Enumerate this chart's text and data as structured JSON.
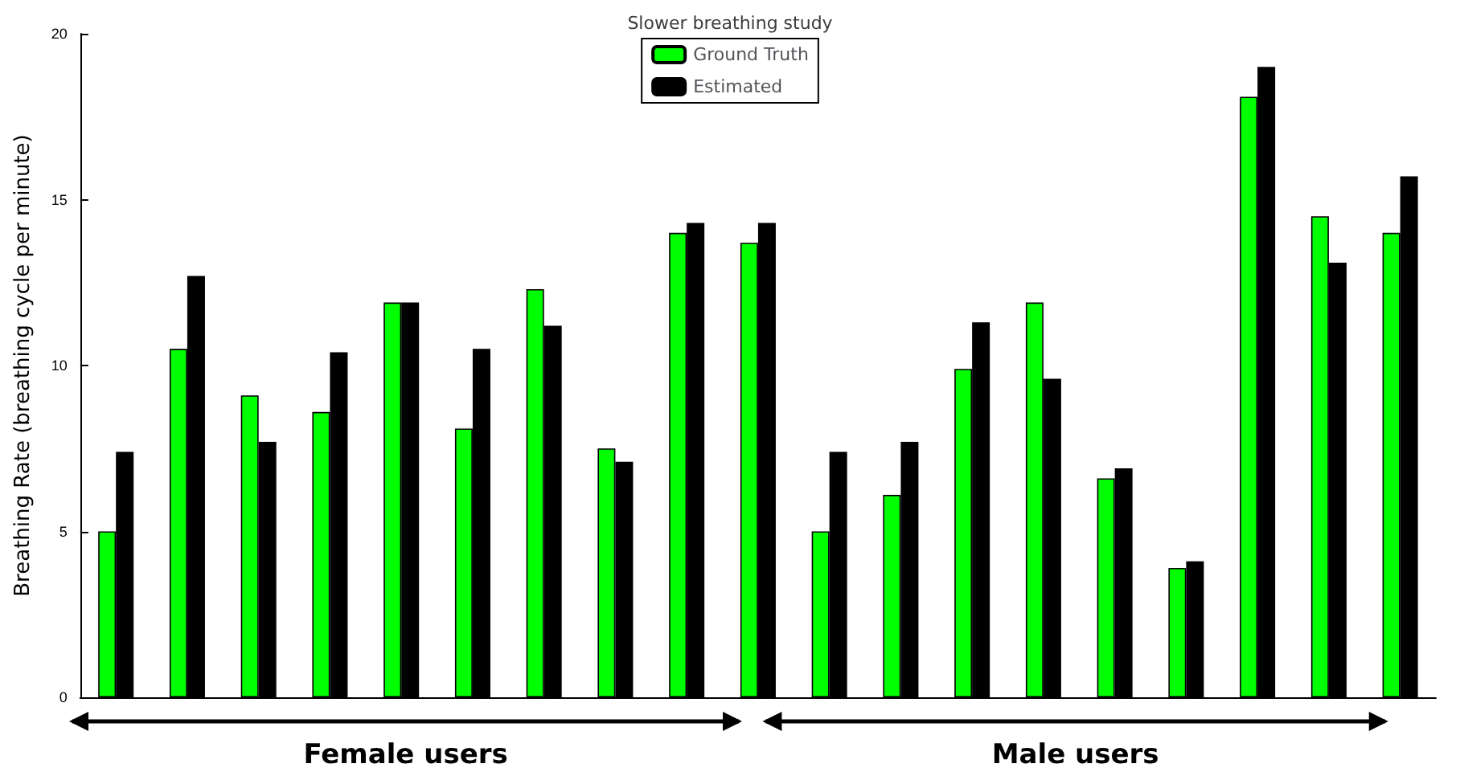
{
  "chart_data": {
    "type": "bar",
    "title": "Slower breathing study",
    "ylabel": "Breathing Rate (breathing cycle per minute)",
    "categories": [
      null,
      null,
      null,
      null,
      null,
      null,
      null,
      null,
      null,
      null,
      null,
      null,
      null,
      null,
      null,
      null,
      null,
      null,
      null
    ],
    "series": [
      {
        "name": "Ground Truth",
        "color": "#00ff00",
        "values": [
          5.0,
          10.5,
          9.1,
          8.6,
          11.9,
          8.1,
          12.3,
          7.5,
          14.0,
          13.7,
          5.0,
          6.1,
          9.9,
          11.9,
          6.6,
          3.9,
          18.1,
          14.5,
          14.0
        ]
      },
      {
        "name": "Estimated",
        "color": "#000000",
        "values": [
          7.4,
          12.7,
          7.7,
          10.4,
          11.9,
          10.5,
          11.2,
          7.1,
          14.3,
          14.3,
          7.4,
          7.7,
          11.3,
          9.6,
          6.9,
          4.1,
          19.0,
          13.1,
          15.7
        ]
      }
    ],
    "ylim": [
      0,
      20
    ],
    "yticks": [
      0,
      5,
      10,
      15,
      20
    ],
    "grid": false,
    "legend": "top",
    "tick_labels": "y",
    "annotations": [
      "Female users",
      "Male users"
    ]
  }
}
